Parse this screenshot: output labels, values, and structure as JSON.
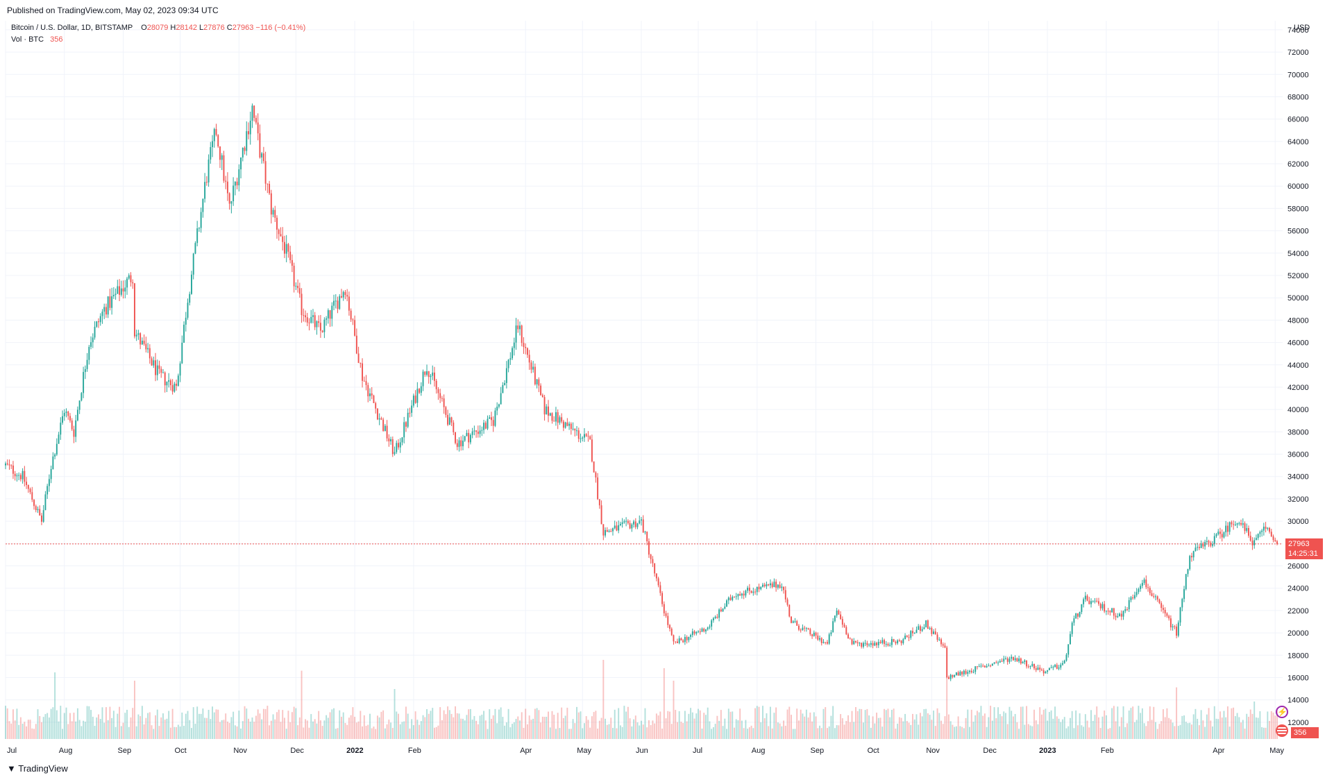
{
  "header": {
    "published": "Published on TradingView.com, May 02, 2023 09:34 UTC"
  },
  "legend": {
    "symbol": "Bitcoin / U.S. Dollar, 1D, BITSTAMP",
    "o_label": "O",
    "o_value": "28079",
    "h_label": "H",
    "h_value": "28142",
    "l_label": "L",
    "l_value": "27876",
    "c_label": "C",
    "c_value": "27963",
    "change": "−116 (−0.41%)",
    "vol_label": "Vol · BTC",
    "vol_value": "356"
  },
  "footer": {
    "brand": "TradingView"
  },
  "colors": {
    "up": "#26a69a",
    "down": "#ef5350",
    "grid": "#f0f3fa",
    "text": "#131722",
    "axis_text": "#131722"
  },
  "icons": [
    "tradingview-logo-icon",
    "lightning-icon",
    "earth-flag-icon"
  ],
  "chart_data": {
    "type": "candlestick",
    "currency": "USD",
    "y_ticks": [
      12000,
      14000,
      16000,
      18000,
      20000,
      22000,
      24000,
      26000,
      28000,
      30000,
      32000,
      34000,
      36000,
      38000,
      40000,
      42000,
      44000,
      46000,
      48000,
      50000,
      52000,
      54000,
      56000,
      58000,
      60000,
      62000,
      64000,
      66000,
      68000,
      70000,
      72000,
      74000
    ],
    "ylim": [
      10500,
      74800
    ],
    "x_labels": [
      "Jul",
      "Aug",
      "Sep",
      "Oct",
      "Nov",
      "Dec",
      "2022",
      "Feb",
      "Apr",
      "May",
      "Jun",
      "Jul",
      "Aug",
      "Sep",
      "Oct",
      "Nov",
      "Dec",
      "2023",
      "Feb",
      "Apr",
      "May"
    ],
    "last_price": "27963",
    "countdown": "14:25:31",
    "last_volume": "356",
    "price_path": [
      [
        "2021-07-01",
        35000
      ],
      [
        "2021-07-10",
        34000
      ],
      [
        "2021-07-20",
        30000
      ],
      [
        "2021-07-25",
        35000
      ],
      [
        "2021-08-01",
        40000
      ],
      [
        "2021-08-06",
        38000
      ],
      [
        "2021-08-14",
        46000
      ],
      [
        "2021-08-22",
        49000
      ],
      [
        "2021-09-06",
        52000
      ],
      [
        "2021-09-07",
        47000
      ],
      [
        "2021-09-20",
        43000
      ],
      [
        "2021-09-29",
        42000
      ],
      [
        "2021-10-05",
        50000
      ],
      [
        "2021-10-15",
        61000
      ],
      [
        "2021-10-20",
        65000
      ],
      [
        "2021-10-27",
        58000
      ],
      [
        "2021-11-08",
        67000
      ],
      [
        "2021-11-10",
        65000
      ],
      [
        "2021-11-18",
        58000
      ],
      [
        "2021-11-26",
        54000
      ],
      [
        "2021-12-04",
        49000
      ],
      [
        "2021-12-14",
        47000
      ],
      [
        "2021-12-27",
        51000
      ],
      [
        "2022-01-05",
        43000
      ],
      [
        "2022-01-22",
        36000
      ],
      [
        "2022-02-08",
        44000
      ],
      [
        "2022-02-24",
        37000
      ],
      [
        "2022-03-15",
        39000
      ],
      [
        "2022-03-28",
        47500
      ],
      [
        "2022-04-11",
        40000
      ],
      [
        "2022-05-05",
        37000
      ],
      [
        "2022-05-12",
        29000
      ],
      [
        "2022-06-01",
        30000
      ],
      [
        "2022-06-13",
        22000
      ],
      [
        "2022-06-18",
        19000
      ],
      [
        "2022-07-06",
        20500
      ],
      [
        "2022-07-20",
        23500
      ],
      [
        "2022-08-14",
        24400
      ],
      [
        "2022-08-19",
        21000
      ],
      [
        "2022-09-07",
        19000
      ],
      [
        "2022-09-12",
        22000
      ],
      [
        "2022-09-20",
        19000
      ],
      [
        "2022-10-15",
        19200
      ],
      [
        "2022-10-29",
        20800
      ],
      [
        "2022-11-08",
        18500
      ],
      [
        "2022-11-09",
        16000
      ],
      [
        "2022-12-14",
        17800
      ],
      [
        "2022-12-31",
        16500
      ],
      [
        "2023-01-10",
        17300
      ],
      [
        "2023-01-14",
        20800
      ],
      [
        "2023-01-21",
        23000
      ],
      [
        "2023-02-09",
        21500
      ],
      [
        "2023-02-20",
        24800
      ],
      [
        "2023-03-10",
        20000
      ],
      [
        "2023-03-17",
        27000
      ],
      [
        "2023-03-31",
        28500
      ],
      [
        "2023-04-11",
        30200
      ],
      [
        "2023-04-20",
        28000
      ],
      [
        "2023-04-26",
        29500
      ],
      [
        "2023-05-02",
        27963
      ]
    ],
    "volume_spikes": [
      [
        "2021-07-27",
        0.8
      ],
      [
        "2021-09-07",
        0.7
      ],
      [
        "2021-12-04",
        0.82
      ],
      [
        "2022-01-22",
        0.6
      ],
      [
        "2022-05-12",
        0.95
      ],
      [
        "2022-06-13",
        0.85
      ],
      [
        "2022-06-18",
        0.7
      ],
      [
        "2022-11-09",
        0.75
      ],
      [
        "2023-03-10",
        0.62
      ],
      [
        "2023-04-20",
        0.45
      ]
    ]
  }
}
